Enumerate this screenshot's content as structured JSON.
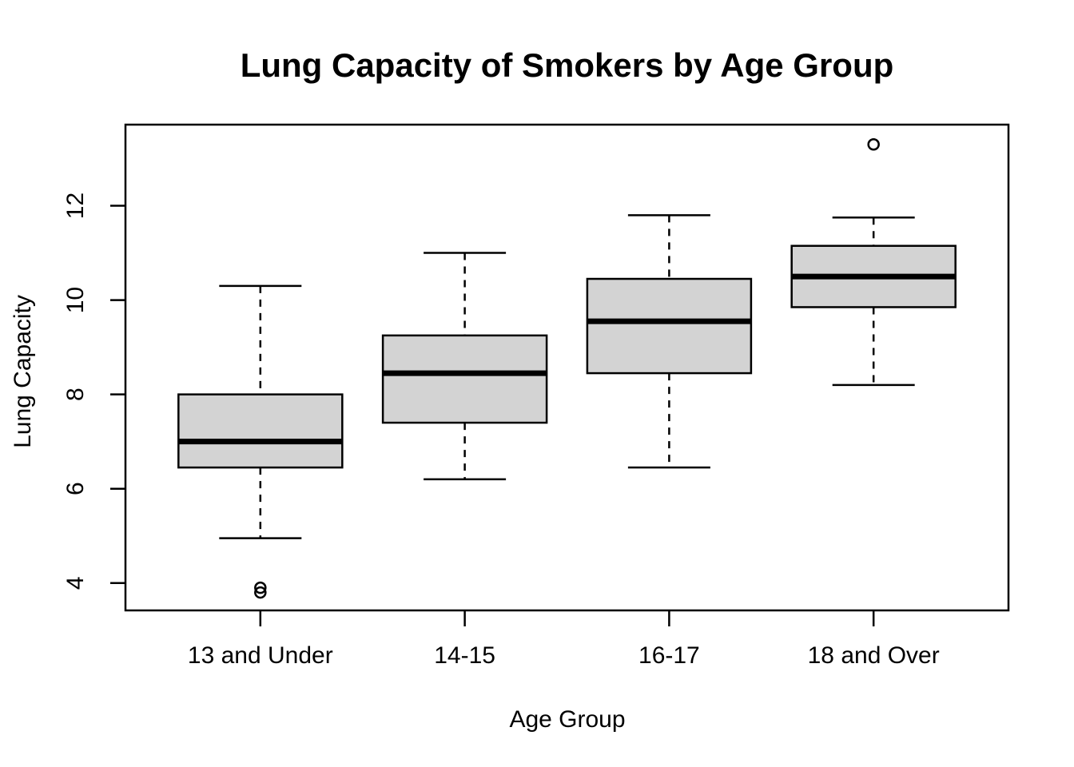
{
  "chart_data": {
    "type": "boxplot",
    "title": "Lung Capacity of Smokers by Age Group",
    "xlabel": "Age Group",
    "ylabel": "Lung Capacity",
    "categories": [
      "13 and Under",
      "14-15",
      "16-17",
      "18 and Over"
    ],
    "y_ticks": [
      4,
      6,
      8,
      10,
      12
    ],
    "ylim": [
      3.42,
      13.72
    ],
    "grid": false,
    "legend": "none",
    "colors": {
      "box_fill": "#d3d3d3",
      "stroke": "#000000",
      "background": "#ffffff"
    },
    "series": [
      {
        "label": "13 and Under",
        "whisker_low": 4.95,
        "q1": 6.45,
        "median": 7.0,
        "q3": 8.0,
        "whisker_high": 10.3,
        "outliers": [
          3.8,
          3.9
        ]
      },
      {
        "label": "14-15",
        "whisker_low": 6.2,
        "q1": 7.4,
        "median": 8.45,
        "q3": 9.25,
        "whisker_high": 11.0,
        "outliers": []
      },
      {
        "label": "16-17",
        "whisker_low": 6.45,
        "q1": 8.45,
        "median": 9.55,
        "q3": 10.45,
        "whisker_high": 11.8,
        "outliers": []
      },
      {
        "label": "18 and Over",
        "whisker_low": 8.2,
        "q1": 9.85,
        "median": 10.5,
        "q3": 11.15,
        "whisker_high": 11.75,
        "outliers": [
          13.3
        ]
      }
    ]
  }
}
